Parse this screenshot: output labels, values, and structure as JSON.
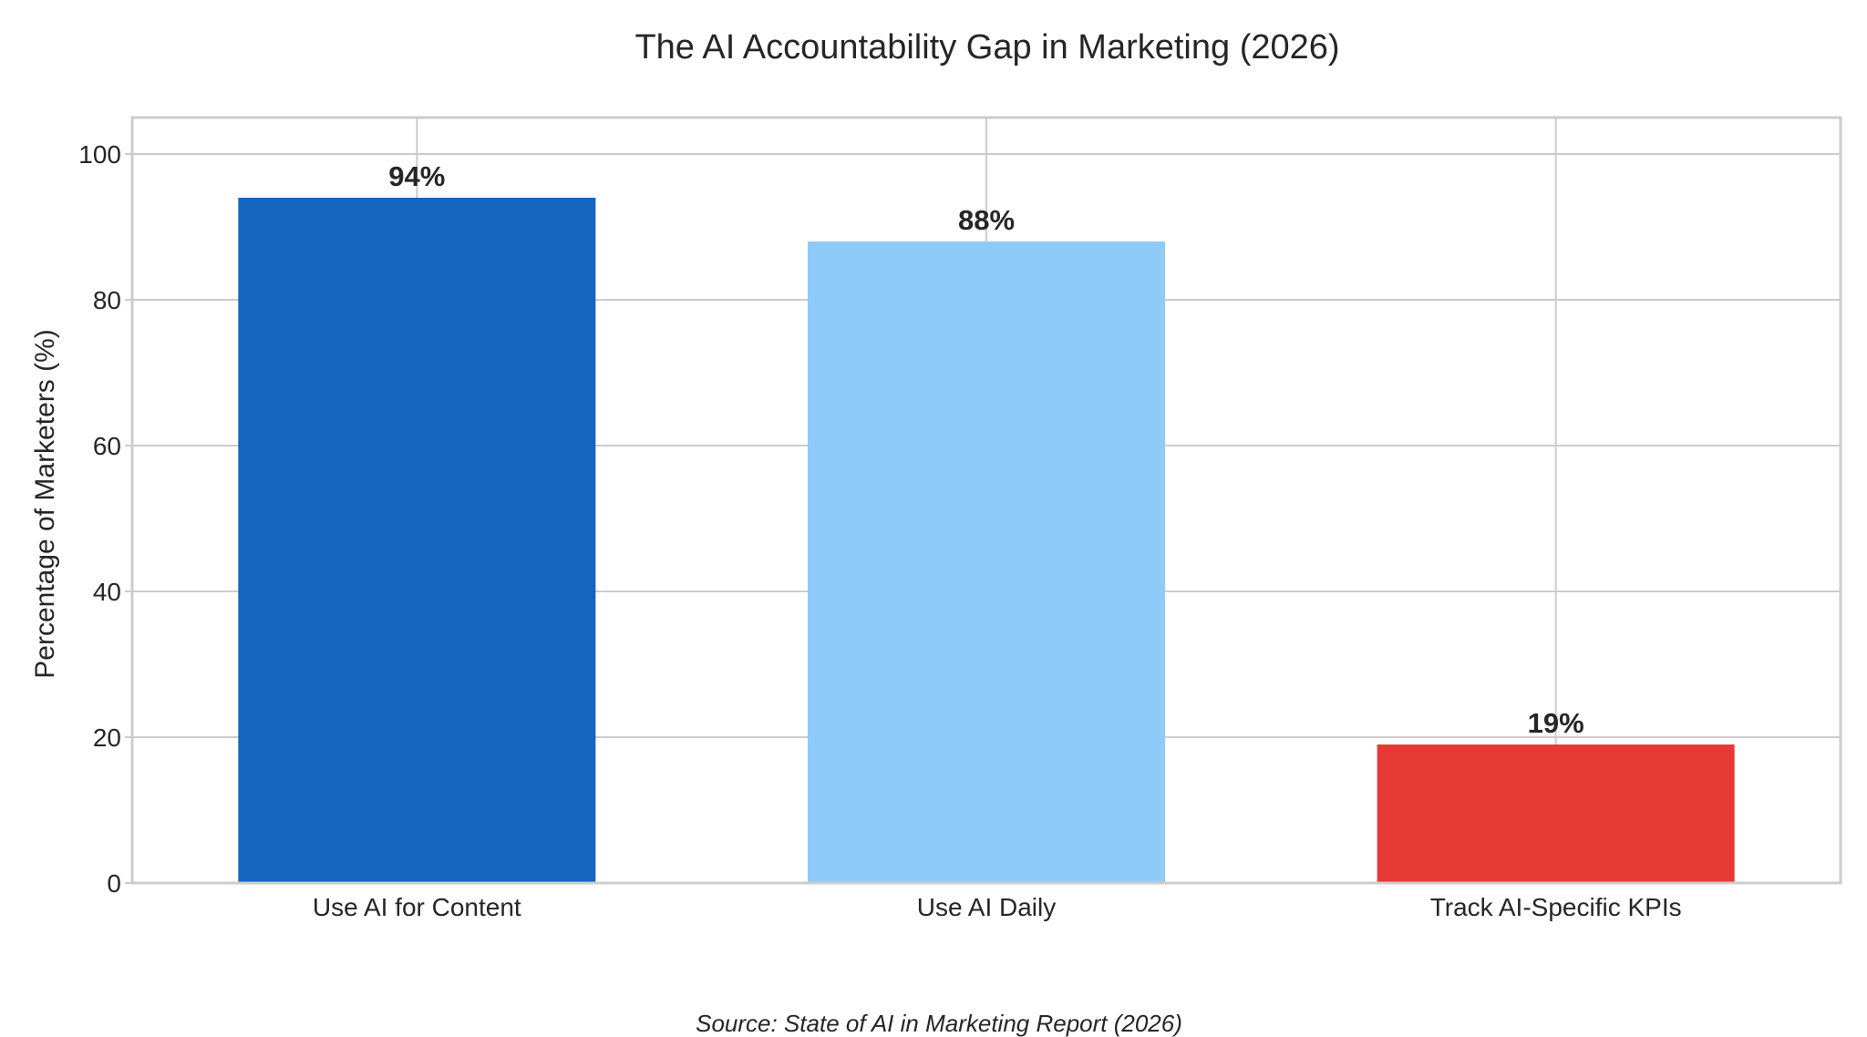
{
  "chart_data": {
    "type": "bar",
    "title": "The AI Accountability Gap in Marketing (2026)",
    "xlabel": "",
    "ylabel": "Percentage of Marketers (%)",
    "categories": [
      "Use AI for Content",
      "Use AI Daily",
      "Track AI-Specific KPIs"
    ],
    "values": [
      94,
      88,
      19
    ],
    "data_labels": [
      "94%",
      "88%",
      "19%"
    ],
    "colors": [
      "#1565c0",
      "#90caf9",
      "#e53935"
    ],
    "ylim": [
      0,
      105
    ],
    "yticks": [
      0,
      20,
      40,
      60,
      80,
      100
    ],
    "ytick_labels": [
      "0",
      "20",
      "40",
      "60",
      "80",
      "100"
    ],
    "grid": true,
    "source": "Source: State of AI in Marketing Report (2026)"
  }
}
